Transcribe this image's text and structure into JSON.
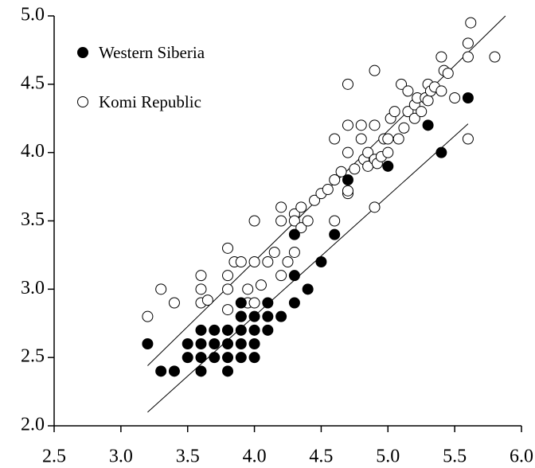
{
  "chart_data": {
    "type": "scatter",
    "xlim": [
      2.5,
      6.0
    ],
    "ylim": [
      2.0,
      5.0
    ],
    "xticks": [
      2.5,
      {
        "value": 3,
        "label": "3.0"
      },
      3.5,
      {
        "value": 4,
        "label": "4.0"
      },
      4.5,
      {
        "value": 5,
        "label": "5.0"
      },
      5.5,
      {
        "value": 6,
        "label": "6.0"
      }
    ],
    "yticks": [
      {
        "value": 2,
        "label": "2.0"
      },
      2.5,
      {
        "value": 3,
        "label": "3.0"
      },
      3.5,
      {
        "value": 4,
        "label": "4.0"
      },
      4.5,
      {
        "value": 5,
        "label": "5.0"
      }
    ],
    "legend": "upper left",
    "series": [
      {
        "name": "Western Siberia",
        "color": "#000000",
        "filled": true,
        "x": [
          3.2,
          3.3,
          3.4,
          3.5,
          3.5,
          3.6,
          3.6,
          3.6,
          3.6,
          3.7,
          3.7,
          3.7,
          3.8,
          3.8,
          3.8,
          3.8,
          3.9,
          3.9,
          3.9,
          3.9,
          3.9,
          4.0,
          4.0,
          4.0,
          4.0,
          4.1,
          4.1,
          4.1,
          4.2,
          4.3,
          4.3,
          4.3,
          4.4,
          4.5,
          4.6,
          4.7,
          5.0,
          5.3,
          5.4,
          5.6
        ],
        "y": [
          2.6,
          2.4,
          2.4,
          2.5,
          2.6,
          2.4,
          2.5,
          2.6,
          2.7,
          2.5,
          2.6,
          2.7,
          2.4,
          2.5,
          2.6,
          2.7,
          2.5,
          2.6,
          2.7,
          2.8,
          2.9,
          2.5,
          2.6,
          2.7,
          2.8,
          2.7,
          2.8,
          2.9,
          2.8,
          2.9,
          3.1,
          3.4,
          3.0,
          3.2,
          3.4,
          3.8,
          3.9,
          4.2,
          4.0,
          4.4
        ]
      },
      {
        "name": "Komi Republic",
        "color": "#000000",
        "filled": false,
        "x": [
          3.2,
          3.3,
          3.4,
          3.6,
          3.6,
          3.6,
          3.65,
          3.8,
          3.8,
          3.8,
          3.8,
          3.8,
          3.85,
          3.9,
          3.9,
          3.95,
          3.95,
          4.0,
          4.0,
          4.0,
          4.05,
          4.1,
          4.15,
          4.2,
          4.2,
          4.2,
          4.25,
          4.3,
          4.3,
          4.3,
          4.35,
          4.35,
          4.4,
          4.45,
          4.5,
          4.55,
          4.6,
          4.6,
          4.6,
          4.65,
          4.7,
          4.7,
          4.7,
          4.7,
          4.7,
          4.75,
          4.8,
          4.8,
          4.82,
          4.85,
          4.85,
          4.9,
          4.9,
          4.9,
          4.9,
          4.92,
          4.95,
          4.97,
          5.0,
          5.0,
          5.02,
          5.05,
          5.08,
          5.1,
          5.12,
          5.15,
          5.15,
          5.2,
          5.2,
          5.22,
          5.25,
          5.28,
          5.3,
          5.3,
          5.32,
          5.35,
          5.4,
          5.42,
          5.4,
          5.45,
          5.5,
          5.6,
          5.6,
          5.6,
          5.62,
          5.8
        ],
        "y": [
          2.8,
          3.0,
          2.9,
          2.9,
          3.0,
          3.1,
          2.92,
          2.7,
          2.85,
          3.0,
          3.1,
          3.3,
          3.2,
          3.2,
          2.8,
          2.9,
          3.0,
          2.9,
          3.2,
          3.5,
          3.03,
          3.2,
          3.27,
          3.1,
          3.5,
          3.6,
          3.2,
          3.55,
          3.5,
          3.27,
          3.6,
          3.45,
          3.5,
          3.65,
          3.7,
          3.73,
          3.5,
          3.8,
          4.1,
          3.86,
          3.7,
          3.72,
          4.0,
          4.2,
          4.5,
          3.88,
          4.2,
          4.1,
          3.95,
          4.0,
          3.9,
          3.6,
          3.95,
          4.2,
          4.6,
          3.92,
          3.97,
          4.1,
          4.1,
          4.0,
          4.25,
          4.3,
          4.1,
          4.5,
          4.18,
          4.3,
          4.45,
          4.25,
          4.35,
          4.4,
          4.3,
          4.4,
          4.38,
          4.5,
          4.45,
          4.48,
          4.45,
          4.6,
          4.7,
          4.58,
          4.4,
          4.1,
          4.7,
          4.8,
          4.95,
          4.7
        ]
      }
    ],
    "fit_lines": [
      {
        "x": [
          3.2,
          5.88
        ],
        "y": [
          2.44,
          5.0
        ]
      },
      {
        "x": [
          3.2,
          5.6
        ],
        "y": [
          2.1,
          4.21
        ]
      }
    ]
  }
}
